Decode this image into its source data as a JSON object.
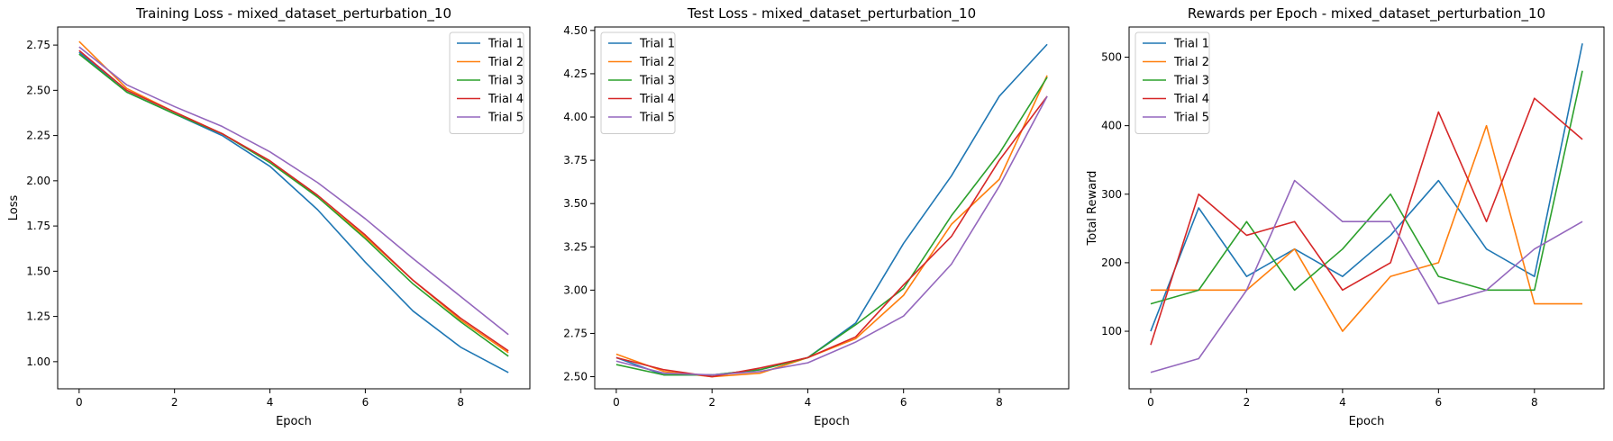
{
  "figure": {
    "background": "#ffffff"
  },
  "chart_data": [
    {
      "type": "line",
      "title": "Training Loss - mixed_dataset_perturbation_10",
      "xlabel": "Epoch",
      "ylabel": "Loss",
      "x": [
        0,
        1,
        2,
        3,
        4,
        5,
        6,
        7,
        8,
        9
      ],
      "xlim": [
        -0.45,
        9.45
      ],
      "ylim": [
        0.85,
        2.85
      ],
      "xticks": [
        0,
        2,
        4,
        6,
        8
      ],
      "yticks": [
        1.0,
        1.25,
        1.5,
        1.75,
        2.0,
        2.25,
        2.5,
        2.75
      ],
      "ytick_decimals": 2,
      "grid": false,
      "legend_position": "top-right",
      "series": [
        {
          "name": "Trial 1",
          "color": "#1f77b4",
          "values": [
            2.71,
            2.49,
            2.37,
            2.25,
            2.08,
            1.84,
            1.55,
            1.28,
            1.08,
            0.94
          ]
        },
        {
          "name": "Trial 2",
          "color": "#ff7f0e",
          "values": [
            2.77,
            2.51,
            2.38,
            2.26,
            2.11,
            1.91,
            1.69,
            1.45,
            1.23,
            1.05
          ]
        },
        {
          "name": "Trial 3",
          "color": "#2ca02c",
          "values": [
            2.7,
            2.49,
            2.37,
            2.26,
            2.1,
            1.91,
            1.68,
            1.43,
            1.22,
            1.03
          ]
        },
        {
          "name": "Trial 4",
          "color": "#d62728",
          "values": [
            2.72,
            2.5,
            2.38,
            2.26,
            2.11,
            1.92,
            1.7,
            1.45,
            1.24,
            1.06
          ]
        },
        {
          "name": "Trial 5",
          "color": "#9467bd",
          "values": [
            2.74,
            2.53,
            2.41,
            2.3,
            2.16,
            1.99,
            1.79,
            1.57,
            1.36,
            1.15
          ]
        }
      ]
    },
    {
      "type": "line",
      "title": "Test Loss - mixed_dataset_perturbation_10",
      "xlabel": "Epoch",
      "ylabel": "",
      "x": [
        0,
        1,
        2,
        3,
        4,
        5,
        6,
        7,
        8,
        9
      ],
      "xlim": [
        -0.45,
        9.45
      ],
      "ylim": [
        2.43,
        4.52
      ],
      "xticks": [
        0,
        2,
        4,
        6,
        8
      ],
      "yticks": [
        2.5,
        2.75,
        3.0,
        3.25,
        3.5,
        3.75,
        4.0,
        4.25,
        4.5
      ],
      "ytick_decimals": 2,
      "grid": false,
      "legend_position": "top-left",
      "series": [
        {
          "name": "Trial 1",
          "color": "#1f77b4",
          "values": [
            2.61,
            2.51,
            2.51,
            2.54,
            2.61,
            2.81,
            3.27,
            3.66,
            4.12,
            4.42
          ]
        },
        {
          "name": "Trial 2",
          "color": "#ff7f0e",
          "values": [
            2.63,
            2.53,
            2.5,
            2.52,
            2.61,
            2.72,
            2.97,
            3.38,
            3.64,
            4.24
          ]
        },
        {
          "name": "Trial 3",
          "color": "#2ca02c",
          "values": [
            2.57,
            2.51,
            2.51,
            2.54,
            2.61,
            2.8,
            3.01,
            3.43,
            3.79,
            4.23
          ]
        },
        {
          "name": "Trial 4",
          "color": "#d62728",
          "values": [
            2.61,
            2.54,
            2.5,
            2.55,
            2.61,
            2.73,
            3.03,
            3.31,
            3.75,
            4.12
          ]
        },
        {
          "name": "Trial 5",
          "color": "#9467bd",
          "values": [
            2.59,
            2.52,
            2.51,
            2.53,
            2.58,
            2.7,
            2.85,
            3.15,
            3.6,
            4.12
          ]
        }
      ]
    },
    {
      "type": "line",
      "title": "Rewards per Epoch - mixed_dataset_perturbation_10",
      "xlabel": "Epoch",
      "ylabel": "Total Reward",
      "x": [
        0,
        1,
        2,
        3,
        4,
        5,
        6,
        7,
        8,
        9
      ],
      "xlim": [
        -0.45,
        9.45
      ],
      "ylim": [
        16,
        544
      ],
      "xticks": [
        0,
        2,
        4,
        6,
        8
      ],
      "yticks": [
        100,
        200,
        300,
        400,
        500
      ],
      "ytick_decimals": 0,
      "grid": false,
      "legend_position": "top-left",
      "series": [
        {
          "name": "Trial 1",
          "color": "#1f77b4",
          "values": [
            100,
            280,
            180,
            220,
            180,
            240,
            320,
            220,
            180,
            520
          ]
        },
        {
          "name": "Trial 2",
          "color": "#ff7f0e",
          "values": [
            160,
            160,
            160,
            220,
            100,
            180,
            200,
            400,
            140,
            140
          ]
        },
        {
          "name": "Trial 3",
          "color": "#2ca02c",
          "values": [
            140,
            160,
            260,
            160,
            220,
            300,
            180,
            160,
            160,
            480
          ]
        },
        {
          "name": "Trial 4",
          "color": "#d62728",
          "values": [
            80,
            300,
            240,
            260,
            160,
            200,
            420,
            260,
            440,
            380
          ]
        },
        {
          "name": "Trial 5",
          "color": "#9467bd",
          "values": [
            40,
            60,
            160,
            320,
            260,
            260,
            140,
            160,
            220,
            260
          ]
        }
      ]
    }
  ]
}
